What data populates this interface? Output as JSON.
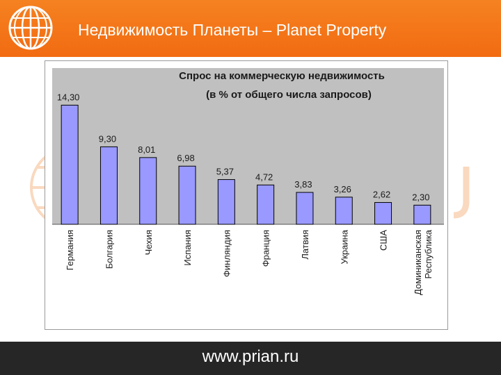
{
  "header": {
    "title": "Недвижимость Планеты – Planet Property"
  },
  "footer": {
    "url": "www.prian.ru"
  },
  "colors": {
    "header_orange": "#f47a1c",
    "plot_bg": "#c0c0c0",
    "bar_fill": "#9999ff",
    "footer_bg": "#262626"
  },
  "chart_data": {
    "type": "bar",
    "title": "Спрос на коммерческую недвижимость (в % от общего числа запросов)",
    "title_lines": [
      "Спрос на коммерческую недвижимость",
      "(в % от общего числа запросов)"
    ],
    "categories": [
      "Германия",
      "Болгария",
      "Чехия",
      "Испания",
      "Финляндия",
      "Франция",
      "Латвия",
      "Украина",
      "США",
      "Доминиканская Республика"
    ],
    "category_lines": [
      [
        "Германия"
      ],
      [
        "Болгария"
      ],
      [
        "Чехия"
      ],
      [
        "Испания"
      ],
      [
        "Финляндия"
      ],
      [
        "Франция"
      ],
      [
        "Латвия"
      ],
      [
        "Украина"
      ],
      [
        "США"
      ],
      [
        "Доминиканская",
        "Республика"
      ]
    ],
    "values": [
      14.3,
      9.3,
      8.01,
      6.98,
      5.37,
      4.72,
      3.83,
      3.26,
      2.62,
      2.3
    ],
    "value_labels": [
      "14,30",
      "9,30",
      "8,01",
      "6,98",
      "5,37",
      "4,72",
      "3,83",
      "3,26",
      "2,62",
      "2,30"
    ],
    "ylim": [
      0,
      15
    ],
    "grid": false,
    "legend": "none"
  }
}
